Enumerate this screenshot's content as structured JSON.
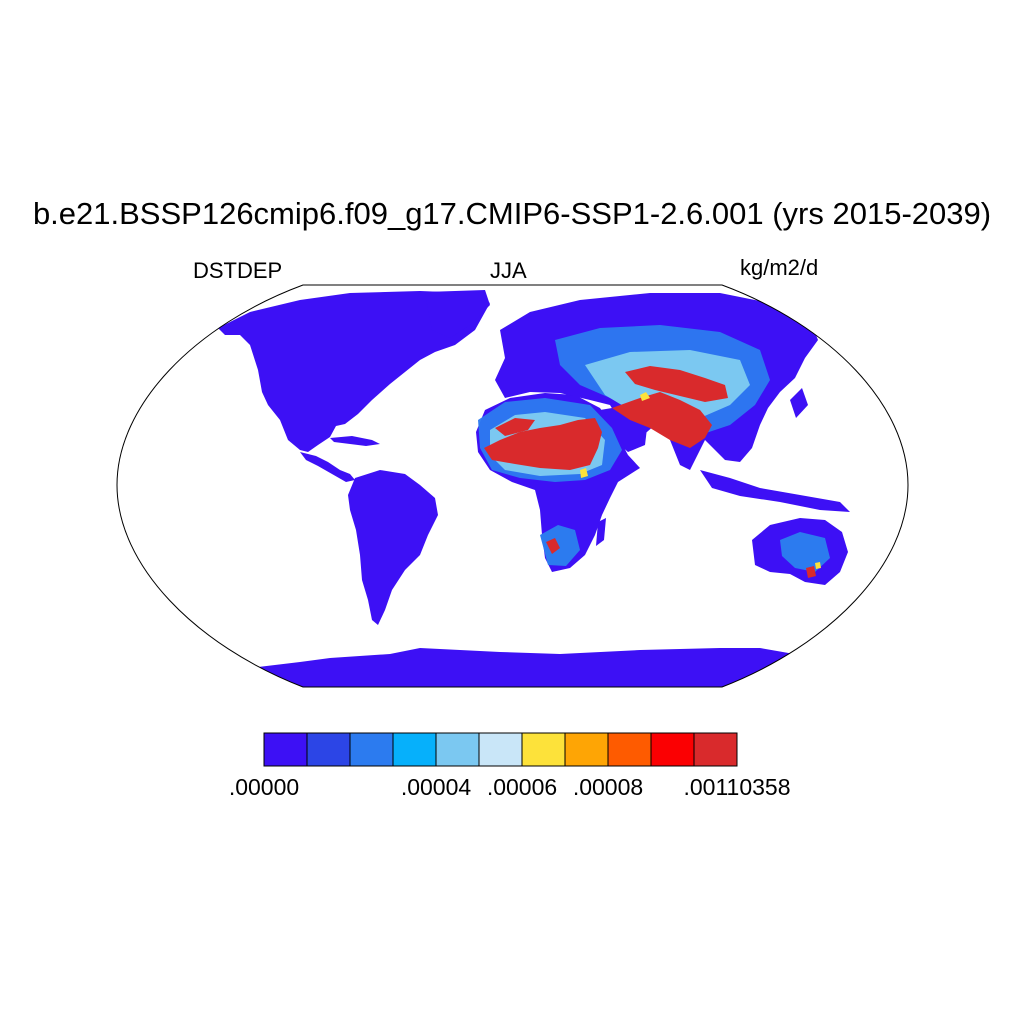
{
  "title": "b.e21.BSSP126cmip6.f09_g17.CMIP6-SSP1-2.6.001 (yrs 2015-2039)",
  "left_label": "DSTDEP",
  "center_label": "JJA",
  "right_label": "kg/m2/d",
  "colorbar": {
    "colors": [
      "#3d10f5",
      "#2c45e6",
      "#2c7bef",
      "#06b0fb",
      "#7bc8f1",
      "#c9e6f8",
      "#fde23a",
      "#fea505",
      "#fe5b00",
      "#fb0002",
      "#d92a2c"
    ],
    "tick_labels": [
      ".00000",
      ".00004",
      ".00006",
      ".00008",
      ".00110358"
    ]
  },
  "colors": {
    "background": "#ffffff",
    "land_low": "#3d10f5",
    "outline": "#000000"
  }
}
